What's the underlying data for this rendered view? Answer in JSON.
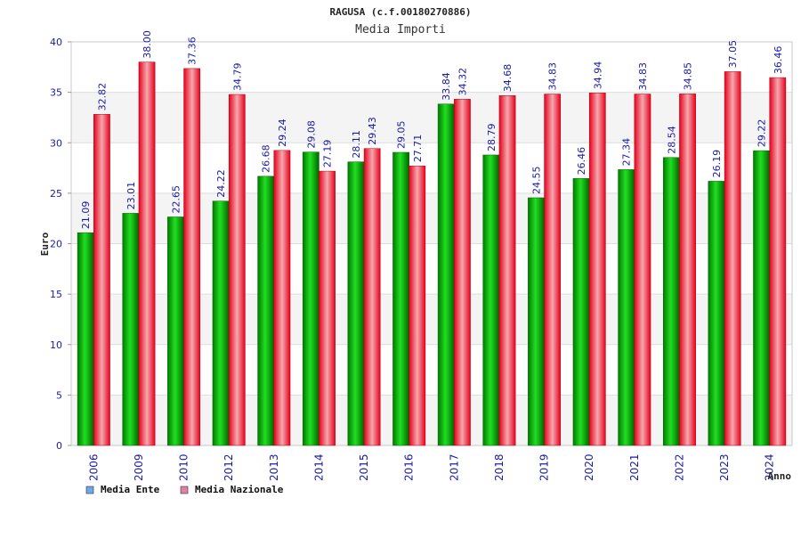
{
  "chart_data": {
    "type": "bar",
    "title": "RAGUSA (c.f.00180270886)",
    "subtitle": "Media Importi",
    "xlabel": "Anno",
    "ylabel": "Euro",
    "categories": [
      "2006",
      "2009",
      "2010",
      "2012",
      "2013",
      "2014",
      "2015",
      "2016",
      "2017",
      "2018",
      "2019",
      "2020",
      "2021",
      "2022",
      "2023",
      "2024"
    ],
    "ylim": [
      0,
      40
    ],
    "yticks": [
      "0",
      "5",
      "10",
      "15",
      "20",
      "25",
      "30",
      "35",
      "40"
    ],
    "grid": true,
    "legend_position": "bottom-left",
    "series": [
      {
        "name": "Media Ente",
        "color": "#00b000",
        "legend_color": "#6ea6e8",
        "values": [
          21.09,
          23.01,
          22.65,
          24.22,
          26.68,
          29.08,
          28.11,
          29.05,
          33.84,
          28.79,
          24.55,
          26.46,
          27.34,
          28.54,
          26.19,
          29.22
        ],
        "labels": [
          "21.09",
          "23.01",
          "22.65",
          "24.22",
          "26.68",
          "29.08",
          "28.11",
          "29.05",
          "33.84",
          "28.79",
          "24.55",
          "26.46",
          "27.34",
          "28.54",
          "26.19",
          "29.22"
        ]
      },
      {
        "name": "Media Nazionale",
        "color": "#e8001c",
        "legend_color": "#e080a8",
        "values": [
          32.82,
          38.0,
          37.36,
          34.79,
          29.24,
          27.19,
          29.43,
          27.71,
          34.32,
          34.68,
          34.83,
          34.94,
          34.83,
          34.85,
          37.05,
          36.46
        ],
        "labels": [
          "32.82",
          "38.00",
          "37.36",
          "34.79",
          "29.24",
          "27.19",
          "29.43",
          "27.71",
          "34.32",
          "34.68",
          "34.83",
          "34.94",
          "34.83",
          "34.85",
          "37.05",
          "36.46"
        ]
      }
    ]
  }
}
